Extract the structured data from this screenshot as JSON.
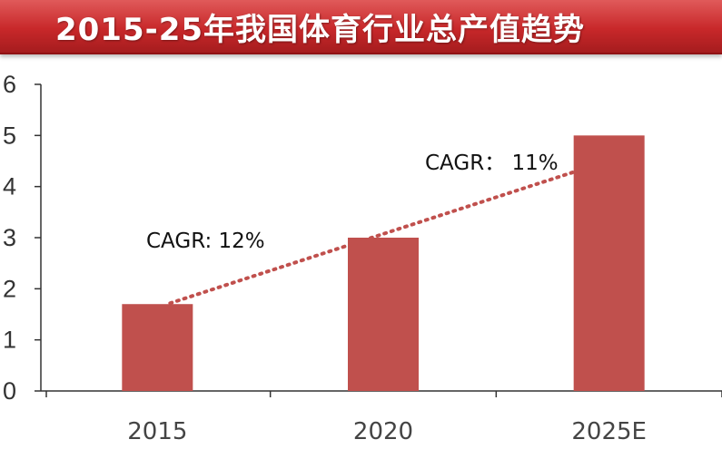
{
  "title": "2015-25年我国体育行业总产值趋势",
  "colors": {
    "bar": "#c0504d",
    "trend": "#c0504d",
    "title_bg": "#c8282a",
    "axis": "#333333"
  },
  "chart_data": {
    "type": "bar",
    "title": "2015-25年我国体育行业总产值趋势",
    "categories": [
      "2015",
      "2020",
      "2025E"
    ],
    "values": [
      1.7,
      3.0,
      5.0
    ],
    "xlabel": "",
    "ylabel": "",
    "ylim": [
      0,
      6
    ],
    "yticks": [
      "0",
      "1",
      "2",
      "3",
      "4",
      "5",
      "6"
    ],
    "grid": false,
    "legend": "none",
    "trendline": {
      "style": "dotted",
      "from_category": "2015",
      "to_category": "2025E"
    },
    "annotations": [
      "CAGR: 12%",
      "CAGR： 11%"
    ]
  }
}
